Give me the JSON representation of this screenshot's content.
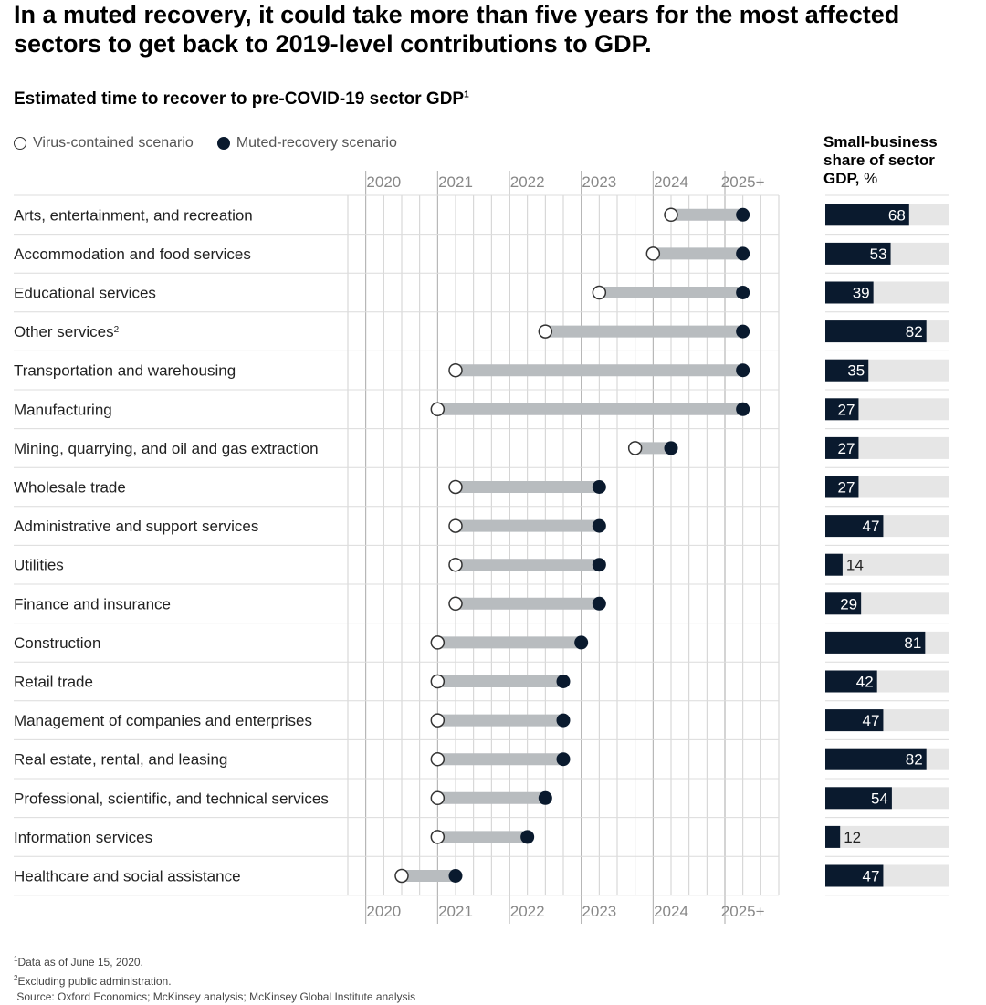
{
  "headline": "In a muted recovery, it could take more than five years for the most affected sectors to get back to 2019-level contributions to GDP.",
  "subtitle": "Estimated time to recover to pre-COVID-19 sector GDP",
  "subtitle_footnote": "1",
  "legend": {
    "open_label": "Virus-contained scenario",
    "filled_label": "Muted-recovery scenario"
  },
  "small_business_header": {
    "line1": "Small-business",
    "line2": "share of sector",
    "line3": "GDP,",
    "unit": "%"
  },
  "colors": {
    "muted_dot": "#0a1a2e",
    "range_bar": "#b8bcbf",
    "share_bar": "#0a1a2e",
    "share_track": "#e6e6e6",
    "grid": "#d0d0d0"
  },
  "chart_data": {
    "type": "dumbbell",
    "x_tick_labels": [
      "2020",
      "2021",
      "2022",
      "2023",
      "2024",
      "2025+"
    ],
    "x_unit": "year",
    "xlim": [
      2019.5,
      2025.5
    ],
    "series": [
      {
        "name": "Virus-contained scenario",
        "marker": "open-circle"
      },
      {
        "name": "Muted-recovery scenario",
        "marker": "filled-circle"
      }
    ],
    "rows": [
      {
        "sector": "Arts, entertainment, and recreation",
        "contained": 2024.0,
        "muted": 2025.0,
        "share": 68
      },
      {
        "sector": "Accommodation and food services",
        "contained": 2023.75,
        "muted": 2025.0,
        "share": 53
      },
      {
        "sector": "Educational services",
        "contained": 2023.0,
        "muted": 2025.0,
        "share": 39
      },
      {
        "sector": "Other services",
        "footnote": "2",
        "contained": 2022.25,
        "muted": 2025.0,
        "share": 82
      },
      {
        "sector": "Transportation and warehousing",
        "contained": 2021.0,
        "muted": 2025.0,
        "share": 35
      },
      {
        "sector": "Manufacturing",
        "contained": 2020.75,
        "muted": 2025.0,
        "share": 27
      },
      {
        "sector": "Mining, quarrying, and oil and gas extraction",
        "contained": 2023.5,
        "muted": 2024.0,
        "share": 27
      },
      {
        "sector": "Wholesale trade",
        "contained": 2021.0,
        "muted": 2023.0,
        "share": 27
      },
      {
        "sector": "Administrative and support services",
        "contained": 2021.0,
        "muted": 2023.0,
        "share": 47
      },
      {
        "sector": "Utilities",
        "contained": 2021.0,
        "muted": 2023.0,
        "share": 14
      },
      {
        "sector": "Finance and insurance",
        "contained": 2021.0,
        "muted": 2023.0,
        "share": 29
      },
      {
        "sector": "Construction",
        "contained": 2020.75,
        "muted": 2022.75,
        "share": 81
      },
      {
        "sector": "Retail trade",
        "contained": 2020.75,
        "muted": 2022.5,
        "share": 42
      },
      {
        "sector": "Management of companies and enterprises",
        "contained": 2020.75,
        "muted": 2022.5,
        "share": 47
      },
      {
        "sector": "Real estate, rental, and leasing",
        "contained": 2020.75,
        "muted": 2022.5,
        "share": 82
      },
      {
        "sector": "Professional, scientific, and technical services",
        "contained": 2020.75,
        "muted": 2022.25,
        "share": 54
      },
      {
        "sector": "Information services",
        "contained": 2020.75,
        "muted": 2022.0,
        "share": 12
      },
      {
        "sector": "Healthcare and social assistance",
        "contained": 2020.25,
        "muted": 2021.0,
        "share": 47
      }
    ],
    "share_max": 100
  },
  "notes": {
    "note1_mark": "1",
    "note1": "Data as of June 15, 2020.",
    "note2_mark": "2",
    "note2": "Excluding public administration.",
    "source": "Source: Oxford Economics; McKinsey analysis; McKinsey Global Institute analysis"
  }
}
